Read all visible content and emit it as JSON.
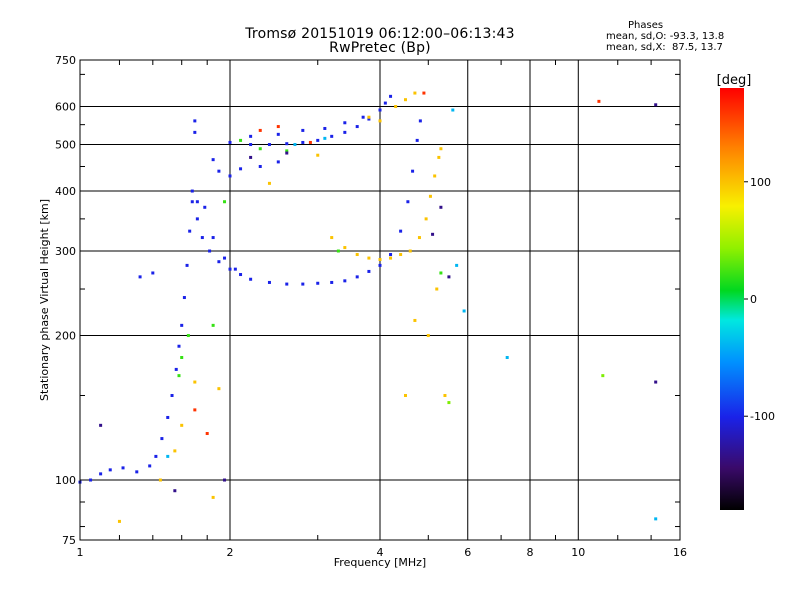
{
  "header": {
    "title": "Tromsø 20151019 06:12:00–06:13:43",
    "subtitle": "RwPretec (Bp)"
  },
  "stats": {
    "heading": "Phases",
    "o_line": "mean, sd,O: -93.3, 13.8",
    "x_line": "mean, sd,X:  87.5, 13.7"
  },
  "colorbar": {
    "unit_label": "[deg]",
    "ticks": [
      "100",
      "0",
      "-100"
    ]
  },
  "colors": {
    "frame": "#000000",
    "grid": "#000000",
    "o_mode": "#1a2adc",
    "x_mode": "#f0e020"
  },
  "chart_data": {
    "type": "scatter",
    "title": "Tromsø 20151019 06:12:00–06:13:43",
    "subtitle": "RwPretec (Bp)",
    "xlabel": "Frequency [MHz]",
    "ylabel": "Stationary phase Virtual Height [km]",
    "x_scale": "log",
    "y_scale": "log",
    "xlim": [
      1,
      16
    ],
    "ylim": [
      75,
      750
    ],
    "x_ticks": [
      1,
      2,
      4,
      6,
      8,
      10,
      16
    ],
    "y_ticks": [
      75,
      100,
      200,
      300,
      400,
      500,
      600,
      750
    ],
    "grid": true,
    "color_scale": {
      "label": "[deg]",
      "range": [
        -180,
        180
      ],
      "ticks": [
        100,
        0,
        -100
      ]
    },
    "series": [
      {
        "phase": -100,
        "points": [
          [
            1.0,
            99
          ],
          [
            1.05,
            100
          ],
          [
            1.1,
            103
          ],
          [
            1.15,
            105
          ],
          [
            1.22,
            106
          ],
          [
            1.3,
            104
          ],
          [
            1.38,
            107
          ],
          [
            1.42,
            112
          ],
          [
            1.46,
            122
          ],
          [
            1.5,
            135
          ],
          [
            1.53,
            150
          ],
          [
            1.56,
            170
          ],
          [
            1.58,
            190
          ],
          [
            1.6,
            210
          ],
          [
            1.62,
            240
          ],
          [
            1.64,
            280
          ],
          [
            1.66,
            330
          ],
          [
            1.68,
            380
          ],
          [
            1.72,
            350
          ],
          [
            1.76,
            320
          ],
          [
            1.82,
            300
          ],
          [
            1.9,
            285
          ],
          [
            2.0,
            275
          ],
          [
            2.1,
            268
          ],
          [
            2.2,
            262
          ],
          [
            2.4,
            258
          ],
          [
            2.6,
            256
          ],
          [
            2.8,
            256
          ],
          [
            3.0,
            257
          ],
          [
            3.2,
            258
          ],
          [
            3.4,
            260
          ],
          [
            3.6,
            265
          ],
          [
            3.8,
            272
          ],
          [
            4.0,
            280
          ],
          [
            4.2,
            295
          ],
          [
            4.4,
            330
          ],
          [
            4.55,
            380
          ],
          [
            4.65,
            440
          ],
          [
            4.75,
            510
          ],
          [
            4.82,
            560
          ],
          [
            1.78,
            370
          ],
          [
            1.85,
            320
          ],
          [
            1.95,
            290
          ],
          [
            2.05,
            275
          ],
          [
            2.0,
            505
          ],
          [
            2.2,
            500
          ],
          [
            2.4,
            500
          ],
          [
            2.6,
            502
          ],
          [
            2.8,
            505
          ],
          [
            3.0,
            510
          ],
          [
            3.2,
            520
          ],
          [
            3.4,
            530
          ],
          [
            3.6,
            545
          ],
          [
            3.8,
            565
          ],
          [
            4.0,
            590
          ],
          [
            4.1,
            610
          ],
          [
            4.2,
            630
          ],
          [
            2.2,
            520
          ],
          [
            2.5,
            525
          ],
          [
            2.8,
            535
          ],
          [
            3.1,
            540
          ],
          [
            3.4,
            555
          ],
          [
            3.7,
            570
          ],
          [
            1.9,
            440
          ],
          [
            2.0,
            430
          ],
          [
            2.1,
            445
          ],
          [
            2.3,
            450
          ],
          [
            2.5,
            460
          ],
          [
            1.4,
            270
          ],
          [
            1.32,
            265
          ],
          [
            1.68,
            400
          ],
          [
            1.72,
            380
          ],
          [
            1.85,
            465
          ],
          [
            1.7,
            560
          ],
          [
            1.7,
            530
          ]
        ]
      },
      {
        "phase": 100,
        "points": [
          [
            3.2,
            320
          ],
          [
            3.4,
            305
          ],
          [
            3.6,
            295
          ],
          [
            3.8,
            290
          ],
          [
            4.0,
            288
          ],
          [
            4.2,
            290
          ],
          [
            4.4,
            295
          ],
          [
            4.6,
            300
          ],
          [
            4.8,
            320
          ],
          [
            4.95,
            350
          ],
          [
            5.05,
            390
          ],
          [
            5.15,
            430
          ],
          [
            5.25,
            470
          ],
          [
            5.3,
            490
          ],
          [
            4.3,
            600
          ],
          [
            4.5,
            620
          ],
          [
            4.7,
            640
          ],
          [
            3.8,
            570
          ],
          [
            4.0,
            560
          ],
          [
            1.7,
            160
          ],
          [
            1.9,
            155
          ],
          [
            1.6,
            130
          ],
          [
            1.55,
            115
          ],
          [
            1.45,
            100
          ],
          [
            1.2,
            82
          ],
          [
            1.85,
            92
          ],
          [
            4.7,
            215
          ],
          [
            5.0,
            200
          ],
          [
            5.4,
            150
          ],
          [
            4.5,
            150
          ],
          [
            2.4,
            415
          ],
          [
            3.0,
            475
          ],
          [
            5.2,
            250
          ]
        ]
      },
      {
        "phase": 20,
        "points": [
          [
            1.6,
            180
          ],
          [
            1.65,
            200
          ],
          [
            1.58,
            165
          ],
          [
            1.95,
            380
          ],
          [
            2.1,
            510
          ],
          [
            2.3,
            490
          ],
          [
            2.6,
            485
          ],
          [
            3.3,
            300
          ],
          [
            5.3,
            270
          ],
          [
            1.85,
            210
          ]
        ]
      },
      {
        "phase": 160,
        "points": [
          [
            2.3,
            535
          ],
          [
            2.5,
            545
          ],
          [
            2.9,
            505
          ],
          [
            4.9,
            640
          ],
          [
            11.0,
            615
          ],
          [
            1.8,
            125
          ],
          [
            1.7,
            140
          ]
        ]
      },
      {
        "phase": -40,
        "points": [
          [
            7.2,
            180
          ],
          [
            14.3,
            83
          ],
          [
            5.6,
            590
          ],
          [
            5.7,
            280
          ],
          [
            1.5,
            112
          ],
          [
            2.7,
            500
          ],
          [
            3.1,
            515
          ],
          [
            5.9,
            225
          ]
        ]
      },
      {
        "phase": 40,
        "points": [
          [
            11.2,
            165
          ],
          [
            5.5,
            145
          ]
        ]
      },
      {
        "phase": -130,
        "points": [
          [
            14.3,
            160
          ],
          [
            14.3,
            605
          ],
          [
            5.3,
            370
          ],
          [
            5.1,
            325
          ],
          [
            1.1,
            130
          ],
          [
            1.95,
            100
          ],
          [
            1.55,
            95
          ],
          [
            5.5,
            265
          ],
          [
            2.2,
            470
          ],
          [
            2.6,
            480
          ]
        ]
      }
    ]
  }
}
